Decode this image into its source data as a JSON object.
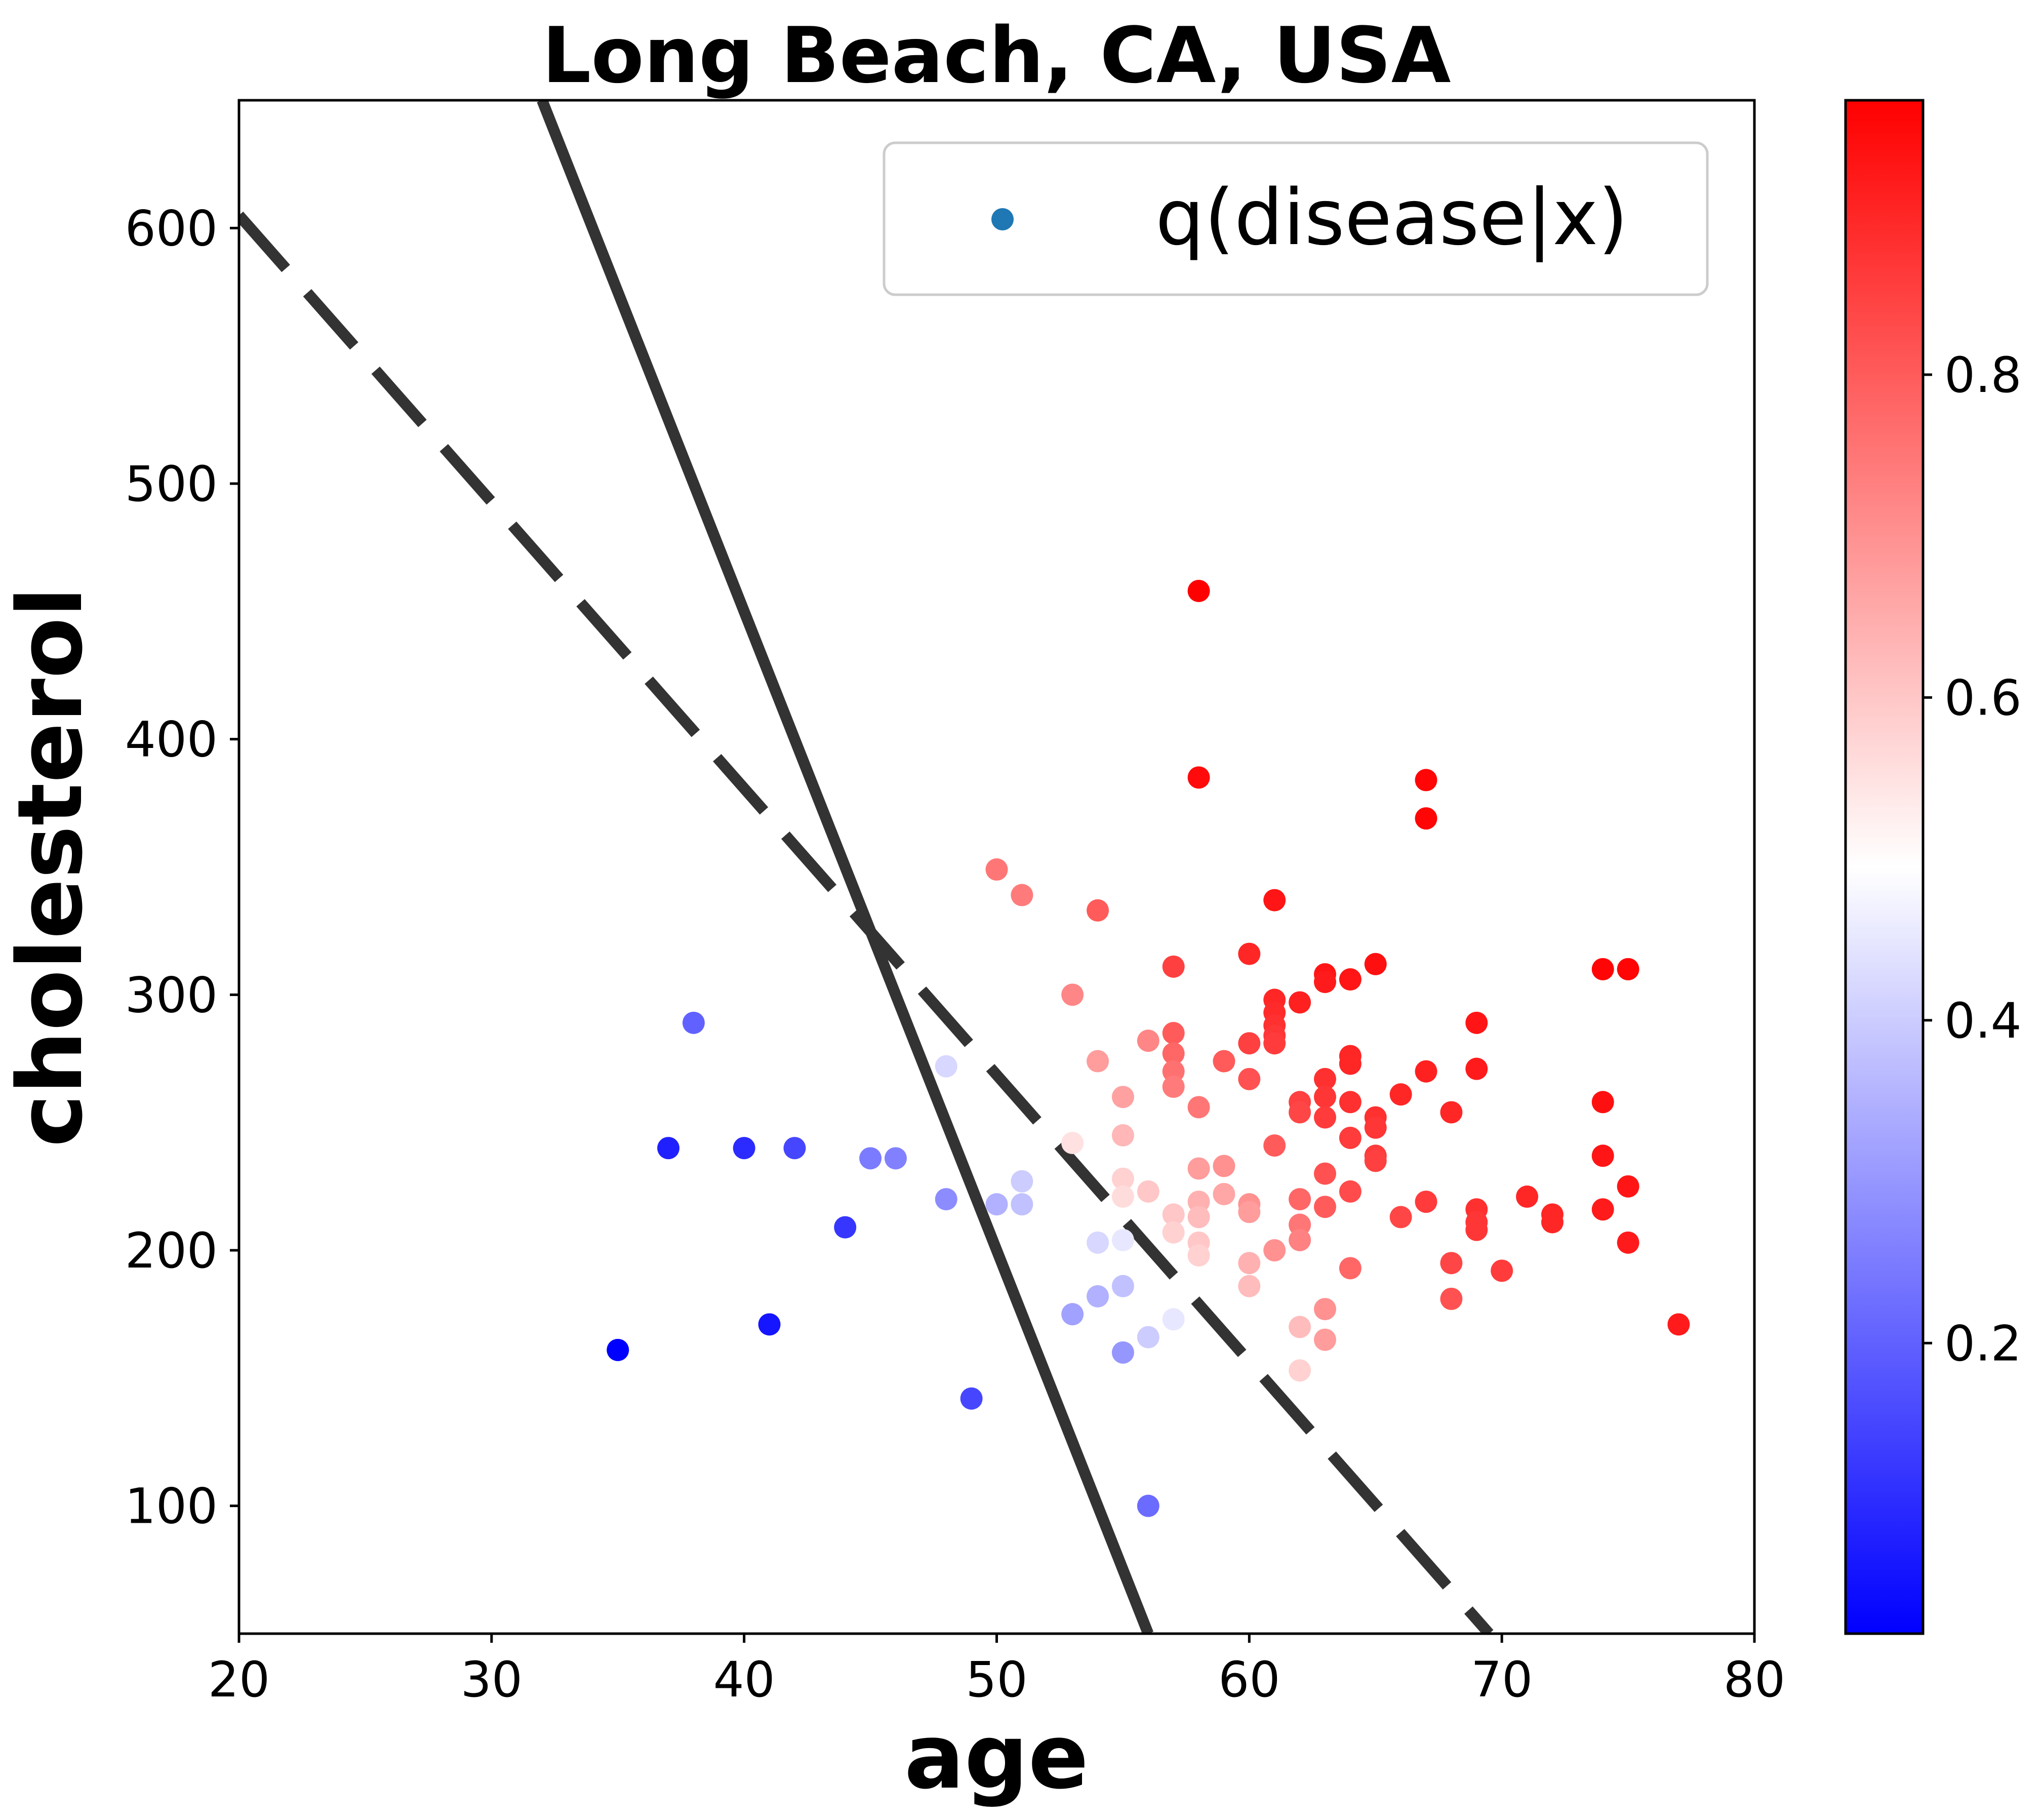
{
  "chart_data": {
    "type": "scatter",
    "title": "Long Beach, CA, USA",
    "xlabel": "age",
    "ylabel": "cholesterol",
    "xlim": [
      20,
      80
    ],
    "ylim": [
      50,
      650
    ],
    "xticks": [
      20,
      30,
      40,
      50,
      60,
      70,
      80
    ],
    "yticks": [
      100,
      200,
      300,
      400,
      500,
      600
    ],
    "legend": {
      "label": "q(disease|x)",
      "position": "top-right",
      "marker_color": "#1f77b4"
    },
    "colorbar": {
      "cmap": "bwr",
      "min": 0.02,
      "max": 0.97,
      "ticks": [
        0.2,
        0.4,
        0.6,
        0.8
      ],
      "tick_labels": [
        "0.2",
        "0.4",
        "0.6",
        "0.8"
      ]
    },
    "lines": [
      {
        "style": "solid",
        "color": "#333333",
        "points": [
          [
            32,
            650
          ],
          [
            56,
            50
          ]
        ]
      },
      {
        "style": "dashed",
        "color": "#333333",
        "points": [
          [
            20,
            605
          ],
          [
            69.5,
            50
          ]
        ]
      }
    ],
    "points": [
      [
        35,
        161,
        0.02
      ],
      [
        37,
        240,
        0.08
      ],
      [
        38,
        289,
        0.2
      ],
      [
        40,
        240,
        0.1
      ],
      [
        41,
        171,
        0.06
      ],
      [
        42,
        240,
        0.15
      ],
      [
        44,
        209,
        0.12
      ],
      [
        45,
        236,
        0.25
      ],
      [
        46,
        236,
        0.26
      ],
      [
        48,
        272,
        0.42
      ],
      [
        48,
        220,
        0.28
      ],
      [
        49,
        142,
        0.15
      ],
      [
        50,
        349,
        0.75
      ],
      [
        50,
        218,
        0.35
      ],
      [
        51,
        339,
        0.74
      ],
      [
        51,
        227,
        0.4
      ],
      [
        51,
        218,
        0.38
      ],
      [
        53,
        300,
        0.72
      ],
      [
        53,
        175,
        0.32
      ],
      [
        53,
        242,
        0.55
      ],
      [
        54,
        333,
        0.8
      ],
      [
        54,
        274,
        0.68
      ],
      [
        54,
        203,
        0.42
      ],
      [
        54,
        182,
        0.35
      ],
      [
        55,
        260,
        0.67
      ],
      [
        55,
        245,
        0.63
      ],
      [
        55,
        228,
        0.58
      ],
      [
        55,
        221,
        0.56
      ],
      [
        55,
        204,
        0.45
      ],
      [
        55,
        186,
        0.38
      ],
      [
        55,
        160,
        0.3
      ],
      [
        56,
        282,
        0.72
      ],
      [
        56,
        223,
        0.6
      ],
      [
        56,
        166,
        0.4
      ],
      [
        56,
        100,
        0.22
      ],
      [
        57,
        311,
        0.85
      ],
      [
        57,
        285,
        0.8
      ],
      [
        57,
        277,
        0.78
      ],
      [
        57,
        270,
        0.76
      ],
      [
        57,
        264,
        0.74
      ],
      [
        57,
        214,
        0.6
      ],
      [
        57,
        207,
        0.58
      ],
      [
        57,
        173,
        0.45
      ],
      [
        58,
        458,
        0.97
      ],
      [
        58,
        385,
        0.95
      ],
      [
        58,
        256,
        0.75
      ],
      [
        58,
        232,
        0.68
      ],
      [
        58,
        219,
        0.64
      ],
      [
        58,
        213,
        0.62
      ],
      [
        58,
        203,
        0.6
      ],
      [
        58,
        198,
        0.58
      ],
      [
        59,
        274,
        0.8
      ],
      [
        59,
        233,
        0.7
      ],
      [
        59,
        222,
        0.66
      ],
      [
        60,
        316,
        0.9
      ],
      [
        60,
        281,
        0.85
      ],
      [
        60,
        267,
        0.82
      ],
      [
        60,
        218,
        0.7
      ],
      [
        60,
        215,
        0.68
      ],
      [
        60,
        195,
        0.64
      ],
      [
        60,
        186,
        0.62
      ],
      [
        61,
        337,
        0.93
      ],
      [
        61,
        298,
        0.9
      ],
      [
        61,
        293,
        0.89
      ],
      [
        61,
        288,
        0.88
      ],
      [
        61,
        284,
        0.87
      ],
      [
        61,
        281,
        0.86
      ],
      [
        61,
        241,
        0.8
      ],
      [
        61,
        200,
        0.7
      ],
      [
        62,
        297,
        0.91
      ],
      [
        62,
        258,
        0.85
      ],
      [
        62,
        254,
        0.84
      ],
      [
        62,
        220,
        0.78
      ],
      [
        62,
        210,
        0.75
      ],
      [
        62,
        204,
        0.73
      ],
      [
        62,
        170,
        0.62
      ],
      [
        62,
        153,
        0.58
      ],
      [
        63,
        308,
        0.93
      ],
      [
        63,
        305,
        0.92
      ],
      [
        63,
        267,
        0.88
      ],
      [
        63,
        260,
        0.87
      ],
      [
        63,
        252,
        0.86
      ],
      [
        63,
        230,
        0.82
      ],
      [
        63,
        217,
        0.8
      ],
      [
        63,
        177,
        0.7
      ],
      [
        63,
        165,
        0.68
      ],
      [
        64,
        306,
        0.93
      ],
      [
        64,
        276,
        0.9
      ],
      [
        64,
        273,
        0.9
      ],
      [
        64,
        258,
        0.88
      ],
      [
        64,
        244,
        0.86
      ],
      [
        64,
        223,
        0.83
      ],
      [
        64,
        193,
        0.78
      ],
      [
        65,
        312,
        0.94
      ],
      [
        65,
        252,
        0.88
      ],
      [
        65,
        248,
        0.87
      ],
      [
        65,
        237,
        0.86
      ],
      [
        65,
        235,
        0.85
      ],
      [
        66,
        261,
        0.9
      ],
      [
        66,
        213,
        0.84
      ],
      [
        67,
        384,
        0.96
      ],
      [
        67,
        369,
        0.96
      ],
      [
        67,
        270,
        0.91
      ],
      [
        67,
        219,
        0.86
      ],
      [
        68,
        254,
        0.9
      ],
      [
        68,
        195,
        0.84
      ],
      [
        68,
        181,
        0.82
      ],
      [
        69,
        289,
        0.93
      ],
      [
        69,
        271,
        0.92
      ],
      [
        69,
        216,
        0.88
      ],
      [
        69,
        211,
        0.87
      ],
      [
        69,
        208,
        0.87
      ],
      [
        70,
        192,
        0.86
      ],
      [
        71,
        221,
        0.9
      ],
      [
        72,
        214,
        0.9
      ],
      [
        72,
        211,
        0.9
      ],
      [
        74,
        310,
        0.96
      ],
      [
        74,
        258,
        0.94
      ],
      [
        74,
        237,
        0.93
      ],
      [
        74,
        216,
        0.92
      ],
      [
        75,
        310,
        0.96
      ],
      [
        75,
        225,
        0.93
      ],
      [
        75,
        203,
        0.92
      ],
      [
        77,
        171,
        0.92
      ]
    ]
  }
}
